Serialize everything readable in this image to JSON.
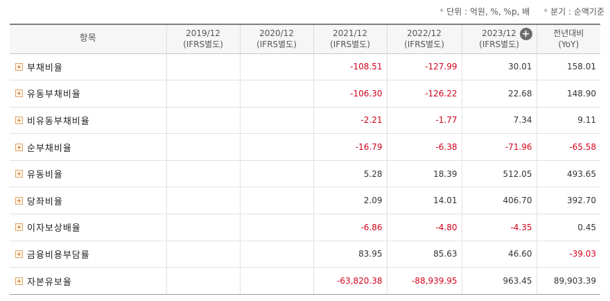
{
  "notes": {
    "unit": "단위 : 억원, %, %p, 배",
    "period": "분기 : 순액기준"
  },
  "header": {
    "item_label": "항목",
    "columns": [
      {
        "year": "2019/12",
        "sub": "(IFRS별도)"
      },
      {
        "year": "2020/12",
        "sub": "(IFRS별도)"
      },
      {
        "year": "2021/12",
        "sub": "(IFRS별도)"
      },
      {
        "year": "2022/12",
        "sub": "(IFRS별도)"
      },
      {
        "year": "2023/12",
        "sub": "(IFRS별도)"
      },
      {
        "year": "전년대비",
        "sub": "(YoY)"
      }
    ],
    "expand_icon": "plus-circle-icon"
  },
  "rows": [
    {
      "label": "부채비율",
      "values": [
        "",
        "",
        "-108.51",
        "-127.99",
        "30.01",
        "158.01"
      ]
    },
    {
      "label": "유동부채비율",
      "values": [
        "",
        "",
        "-106.30",
        "-126.22",
        "22.68",
        "148.90"
      ]
    },
    {
      "label": "비유동부채비율",
      "values": [
        "",
        "",
        "-2.21",
        "-1.77",
        "7.34",
        "9.11"
      ]
    },
    {
      "label": "순부채비율",
      "values": [
        "",
        "",
        "-16.79",
        "-6.38",
        "-71.96",
        "-65.58"
      ]
    },
    {
      "label": "유동비율",
      "values": [
        "",
        "",
        "5.28",
        "18.39",
        "512.05",
        "493.65"
      ]
    },
    {
      "label": "당좌비율",
      "values": [
        "",
        "",
        "2.09",
        "14.01",
        "406.70",
        "392.70"
      ]
    },
    {
      "label": "이자보상배율",
      "values": [
        "",
        "",
        "-6.86",
        "-4.80",
        "-4.35",
        "0.45"
      ]
    },
    {
      "label": "금융비용부담률",
      "values": [
        "",
        "",
        "83.95",
        "85.63",
        "46.60",
        "-39.03"
      ]
    },
    {
      "label": "자본유보율",
      "values": [
        "",
        "",
        "-63,820.38",
        "-88,939.95",
        "963.45",
        "89,903.39"
      ]
    }
  ],
  "colors": {
    "negative": "#d0021b",
    "expand_icon": "#e0701a"
  }
}
